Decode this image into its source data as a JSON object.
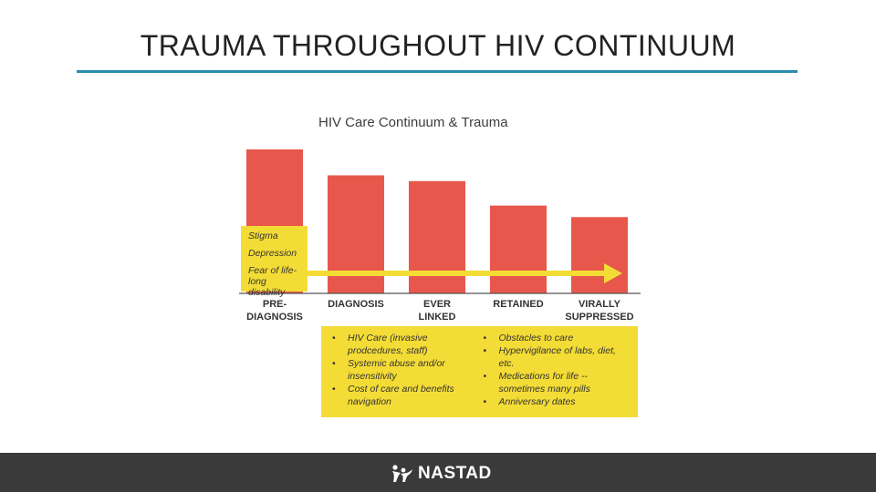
{
  "slide": {
    "title": "TRAUMA THROUGHOUT HIV CONTINUUM"
  },
  "chart_data": {
    "type": "bar",
    "title": "HIV Care Continuum & Trauma",
    "categories": [
      "PRE-\nDIAGNOSIS",
      "DIAGNOSIS",
      "EVER\nLINKED",
      "RETAINED",
      "VIRALLY\nSUPPRESSED"
    ],
    "values": [
      100,
      82,
      78,
      61,
      53
    ],
    "value_unit": "relative bar height (no axis shown)",
    "bar_color": "#e8574b",
    "ylim": [
      0,
      100
    ],
    "grid": false,
    "arrow_color": "#f4dc36"
  },
  "stressors": {
    "items": [
      "Stigma",
      "Depression",
      "Fear of life-\nlong disability"
    ]
  },
  "care_notes": {
    "left": [
      "HIV Care (invasive\nprodcedures, staff)",
      "Systemic abuse and/or\ninsensitivity",
      "Cost of care and benefits\nnavigation"
    ],
    "right": [
      "Obstacles to care",
      "Hypervigilance of labs, diet,\netc.",
      "Medications for life --\nsometimes many pills",
      "Anniversary dates"
    ],
    "bullet": "•"
  },
  "footer": {
    "logo_text": "NASTAD",
    "logo_icon": "nastad-figures-icon",
    "background": "#3a3a3a"
  }
}
